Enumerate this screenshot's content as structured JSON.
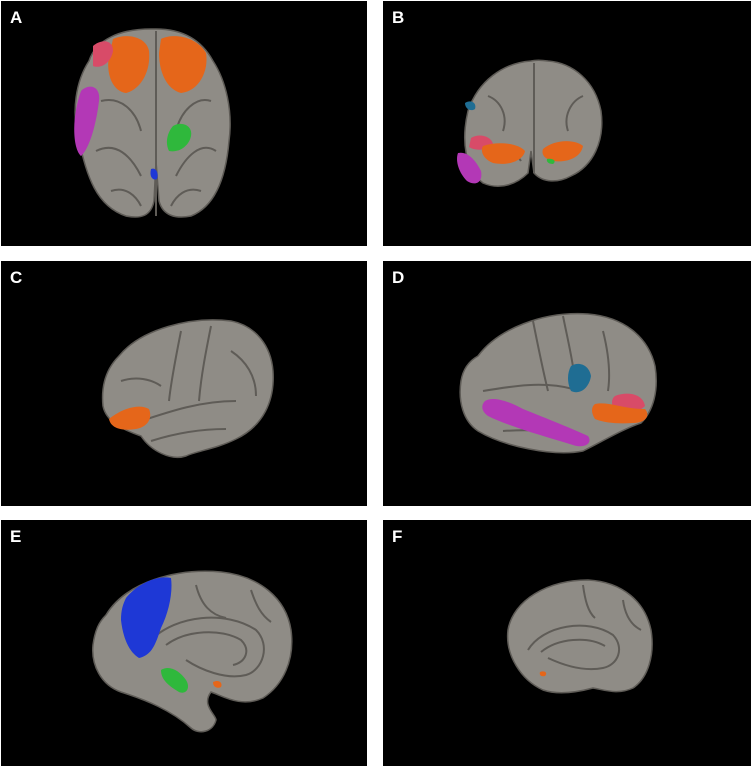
{
  "panels": [
    {
      "label": "A",
      "view": "ventral"
    },
    {
      "label": "B",
      "view": "anterior"
    },
    {
      "label": "C",
      "view": "left-lateral"
    },
    {
      "label": "D",
      "view": "right-lateral"
    },
    {
      "label": "E",
      "view": "left-medial"
    },
    {
      "label": "F",
      "view": "right-medial"
    }
  ],
  "colors": {
    "background": "#000000",
    "cortex": "#8f8c86",
    "sulcus": "#5f5c57",
    "orange": "#e5661a",
    "pink": "#d84b68",
    "magenta": "#b338b6",
    "green": "#2fb83c",
    "blue": "#1e38d6",
    "teal": "#1f6d93"
  }
}
